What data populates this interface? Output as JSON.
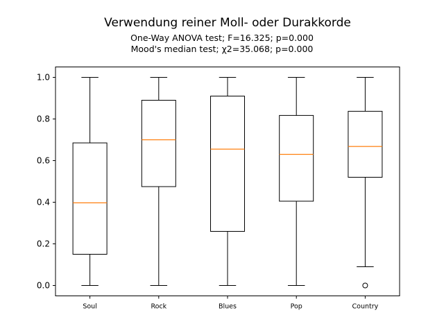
{
  "chart_data": {
    "type": "boxplot",
    "title": "Verwendung reiner Moll- oder Durakkorde",
    "subtitle_lines": [
      "One-Way ANOVA test; F=16.325; p=0.000",
      "Mood's median test; χ2=35.068; p=0.000"
    ],
    "xlabel": "",
    "ylabel": "",
    "ylim": [
      -0.05,
      1.05
    ],
    "yticks": [
      0.0,
      0.2,
      0.4,
      0.6,
      0.8,
      1.0
    ],
    "ytick_labels": [
      "0.0",
      "0.2",
      "0.4",
      "0.6",
      "0.8",
      "1.0"
    ],
    "grid": false,
    "categories": [
      "Soul",
      "Rock",
      "Blues",
      "Pop",
      "Country"
    ],
    "boxes": [
      {
        "name": "Soul",
        "whisker_low": 0.0,
        "q1": 0.15,
        "median": 0.397,
        "q3": 0.685,
        "whisker_high": 1.0,
        "outliers": []
      },
      {
        "name": "Rock",
        "whisker_low": 0.0,
        "q1": 0.475,
        "median": 0.7,
        "q3": 0.89,
        "whisker_high": 1.0,
        "outliers": []
      },
      {
        "name": "Blues",
        "whisker_low": 0.0,
        "q1": 0.26,
        "median": 0.655,
        "q3": 0.91,
        "whisker_high": 1.0,
        "outliers": []
      },
      {
        "name": "Pop",
        "whisker_low": 0.0,
        "q1": 0.405,
        "median": 0.63,
        "q3": 0.817,
        "whisker_high": 1.0,
        "outliers": []
      },
      {
        "name": "Country",
        "whisker_low": 0.09,
        "q1": 0.52,
        "median": 0.668,
        "q3": 0.837,
        "whisker_high": 1.0,
        "outliers": [
          0.0
        ]
      }
    ],
    "colors": {
      "box": "#000000",
      "median": "#ff7f0e",
      "outlier": "#000000"
    }
  }
}
